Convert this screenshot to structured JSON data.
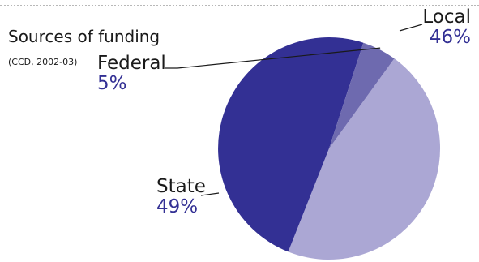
{
  "title": "Sources of funding",
  "subtitle": "(CCD, 2002-03)",
  "chart_data": {
    "type": "pie",
    "start_angle_deg": 36,
    "direction": "clockwise",
    "slices": [
      {
        "label": "Local",
        "value": 46,
        "display": "46%",
        "color": "#aba7d4"
      },
      {
        "label": "State",
        "value": 49,
        "display": "49%",
        "color": "#333094"
      },
      {
        "label": "Federal",
        "value": 5,
        "display": "5%",
        "color": "#6e6aaf"
      }
    ]
  },
  "colors": {
    "label_text": "#1a1a1a",
    "percent_text": "#333094",
    "leader_line": "#1a1a1a",
    "rule": "#b8b8b8"
  }
}
